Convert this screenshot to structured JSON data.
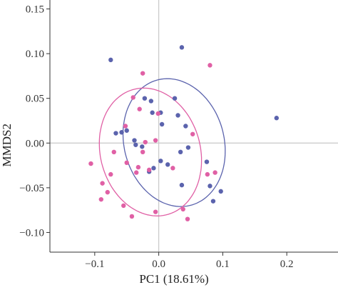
{
  "chart_data": {
    "type": "scatter",
    "title": "",
    "xlabel": "PC1 (18.61%)",
    "ylabel": "MMDS2",
    "xlim": [
      -0.17,
      0.28
    ],
    "ylim": [
      -0.122,
      0.16
    ],
    "x_ticks": [
      -0.1,
      0.0,
      0.1,
      0.2
    ],
    "x_tick_labels": [
      "−0.1",
      "0.0",
      "0.1",
      "0.2"
    ],
    "y_ticks": [
      -0.1,
      -0.05,
      0.0,
      0.05,
      0.1,
      0.15
    ],
    "y_tick_labels": [
      "−0.10",
      "−0.05",
      "0.00",
      "0.05",
      "0.10",
      "0.15"
    ],
    "reference_lines": {
      "x": 0,
      "y": 0
    },
    "grid": false,
    "legend": "none",
    "series": [
      {
        "color": "#5b63ad",
        "points": [
          [
            -0.075,
            0.093
          ],
          [
            0.036,
            0.107
          ],
          [
            0.184,
            0.028
          ],
          [
            -0.022,
            0.05
          ],
          [
            -0.012,
            0.047
          ],
          [
            0.025,
            0.05
          ],
          [
            -0.01,
            0.034
          ],
          [
            0.003,
            0.034
          ],
          [
            0.03,
            0.031
          ],
          [
            0.005,
            0.021
          ],
          [
            0.042,
            0.019
          ],
          [
            -0.067,
            0.011
          ],
          [
            -0.058,
            0.012
          ],
          [
            -0.05,
            0.014
          ],
          [
            -0.038,
            0.003
          ],
          [
            -0.036,
            -0.002
          ],
          [
            -0.026,
            -0.004
          ],
          [
            0.046,
            -0.005
          ],
          [
            0.034,
            -0.01
          ],
          [
            0.003,
            -0.02
          ],
          [
            0.014,
            -0.024
          ],
          [
            0.075,
            -0.021
          ],
          [
            -0.008,
            -0.028
          ],
          [
            -0.015,
            -0.032
          ],
          [
            0.036,
            -0.047
          ],
          [
            0.08,
            -0.048
          ],
          [
            0.097,
            -0.054
          ],
          [
            0.085,
            -0.065
          ]
        ]
      },
      {
        "color": "#e060a5",
        "points": [
          [
            -0.025,
            0.078
          ],
          [
            0.08,
            0.087
          ],
          [
            -0.04,
            0.051
          ],
          [
            -0.03,
            0.038
          ],
          [
            -0.001,
            0.033
          ],
          [
            0.053,
            0.01
          ],
          [
            -0.052,
            0.019
          ],
          [
            -0.005,
            0.003
          ],
          [
            -0.021,
            0.001
          ],
          [
            -0.07,
            -0.01
          ],
          [
            -0.025,
            -0.01
          ],
          [
            -0.05,
            -0.022
          ],
          [
            -0.106,
            -0.023
          ],
          [
            -0.032,
            -0.027
          ],
          [
            -0.015,
            -0.03
          ],
          [
            -0.035,
            -0.033
          ],
          [
            -0.075,
            -0.035
          ],
          [
            0.022,
            -0.028
          ],
          [
            0.076,
            -0.035
          ],
          [
            0.088,
            -0.033
          ],
          [
            -0.088,
            -0.045
          ],
          [
            -0.08,
            -0.055
          ],
          [
            -0.09,
            -0.063
          ],
          [
            -0.055,
            -0.07
          ],
          [
            0.038,
            -0.074
          ],
          [
            -0.042,
            -0.082
          ],
          [
            0.045,
            -0.085
          ],
          [
            -0.005,
            -0.077
          ]
        ]
      }
    ],
    "ellipses": [
      {
        "color": "#5b63ad",
        "cx": 0.024,
        "cy": 0.0005,
        "rx": 0.082,
        "ry": 0.069,
        "angle_deg": -25
      },
      {
        "color": "#e060a5",
        "cx": -0.013,
        "cy": -0.01,
        "rx": 0.082,
        "ry": 0.069,
        "angle_deg": -25
      }
    ],
    "colors": {
      "axis": "#333333",
      "ref_line": "#c8c8c8"
    }
  }
}
